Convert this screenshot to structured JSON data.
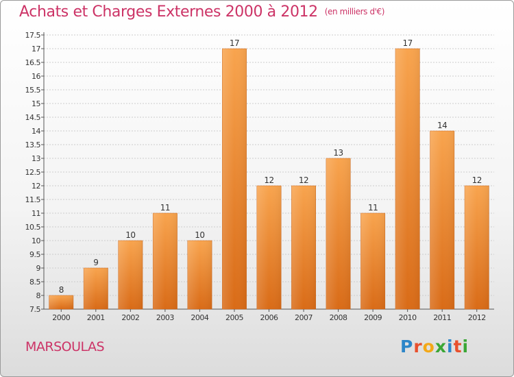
{
  "header": {
    "title": "Achats et Charges Externes 2000 à 2012",
    "subtitle": "(en milliers d'€)"
  },
  "commune": "MARSOULAS",
  "brand": {
    "text": "Proxiti",
    "letters": [
      {
        "char": "P",
        "color": "#2d86c8"
      },
      {
        "char": "r",
        "color": "#e8502d"
      },
      {
        "char": "o",
        "color": "#f3a818"
      },
      {
        "char": "x",
        "color": "#3aa635"
      },
      {
        "char": "i",
        "color": "#2d86c8"
      },
      {
        "char": "t",
        "color": "#e8502d"
      },
      {
        "char": "i",
        "color": "#3aa635"
      }
    ]
  },
  "colors": {
    "title": "#cc3366",
    "bar_light": "#f8a44e",
    "bar_dark": "#d96b17",
    "grid": "#cccccc",
    "axis": "#555555"
  },
  "chart_data": {
    "type": "bar",
    "title": "Achats et Charges Externes 2000 à 2012",
    "subtitle": "(en milliers d'€)",
    "categories": [
      "2000",
      "2001",
      "2002",
      "2003",
      "2004",
      "2005",
      "2006",
      "2007",
      "2008",
      "2009",
      "2010",
      "2011",
      "2012"
    ],
    "values": [
      8,
      9,
      10,
      11,
      10,
      17,
      12,
      12,
      13,
      11,
      17,
      14,
      12
    ],
    "value_labels": [
      "8",
      "9",
      "10",
      "11",
      "10",
      "17",
      "12",
      "12",
      "13",
      "11",
      "17",
      "14",
      "12"
    ],
    "ylim": [
      7.5,
      17.5
    ],
    "yticks": [
      "7.5",
      "8",
      "8.5",
      "9",
      "9.5",
      "10",
      "10.5",
      "11",
      "11.5",
      "12",
      "12.5",
      "13",
      "13.5",
      "14",
      "14.5",
      "15",
      "15.5",
      "16",
      "16.5",
      "17",
      "17.5"
    ],
    "grid": true,
    "legend": "none",
    "xlabel": "",
    "ylabel": ""
  }
}
